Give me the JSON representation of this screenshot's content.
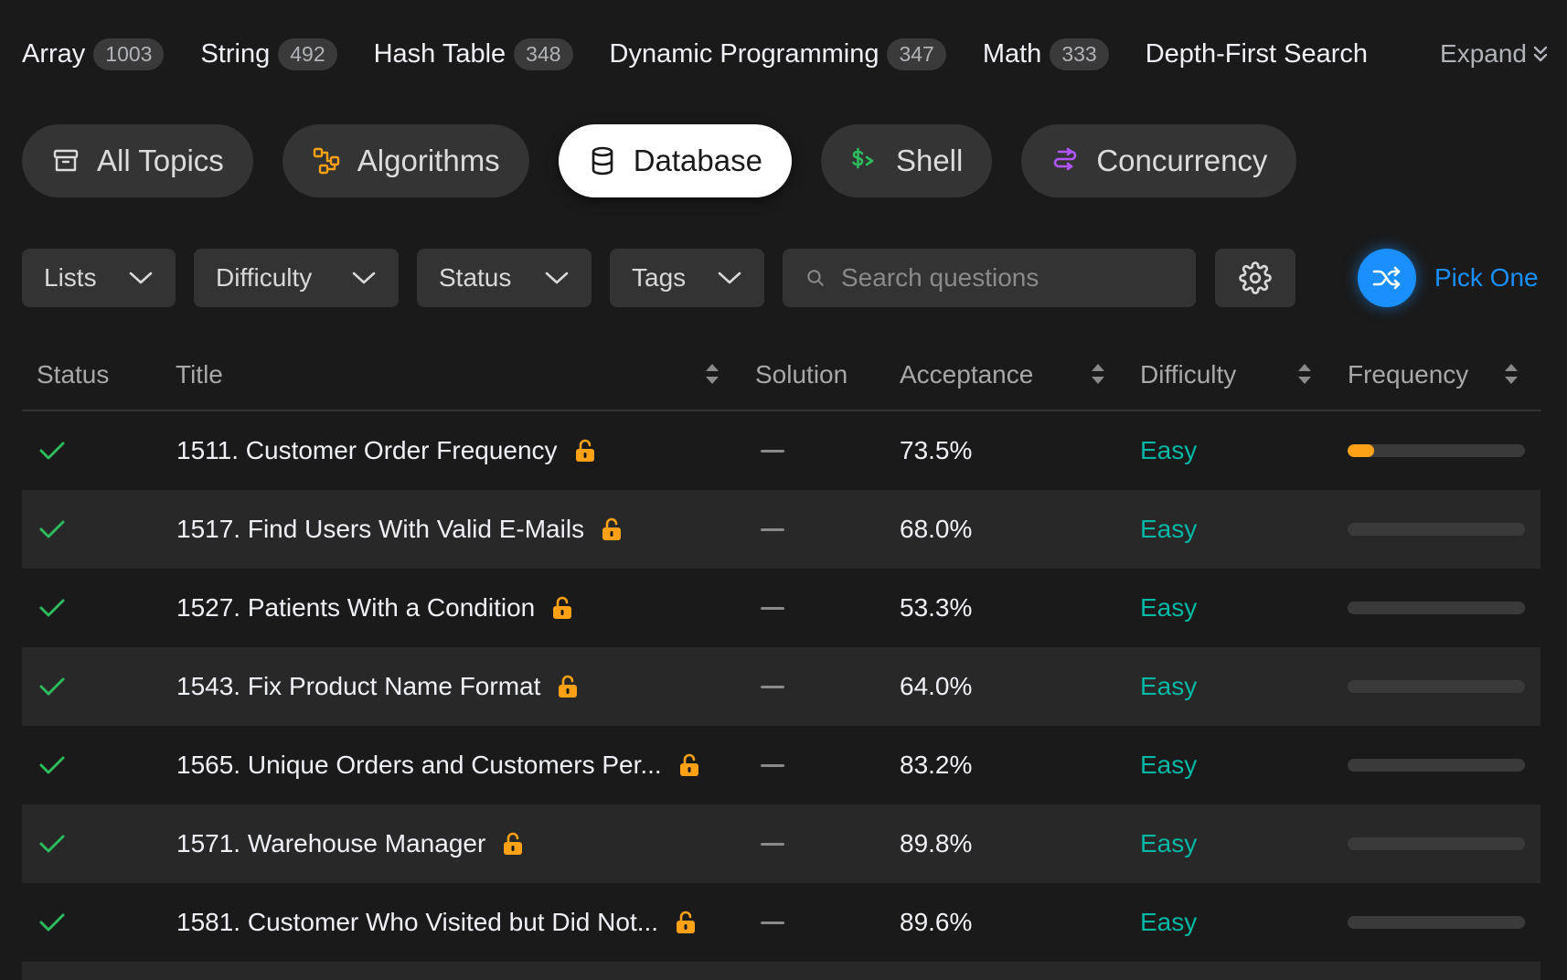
{
  "tags": [
    {
      "name": "Array",
      "count": "1003"
    },
    {
      "name": "String",
      "count": "492"
    },
    {
      "name": "Hash Table",
      "count": "348"
    },
    {
      "name": "Dynamic Programming",
      "count": "347"
    },
    {
      "name": "Math",
      "count": "333"
    },
    {
      "name": "Depth-First Search",
      "count": ""
    }
  ],
  "expand_label": "Expand",
  "categories": [
    {
      "label": "All Topics",
      "icon": "archive-icon"
    },
    {
      "label": "Algorithms",
      "icon": "algorithms-icon",
      "color": "#ffa116"
    },
    {
      "label": "Database",
      "icon": "database-icon",
      "active": true
    },
    {
      "label": "Shell",
      "icon": "shell-icon",
      "color": "#2cbb5d"
    },
    {
      "label": "Concurrency",
      "icon": "concurrency-icon",
      "color": "#b155ff"
    }
  ],
  "filters": {
    "lists": "Lists",
    "difficulty": "Difficulty",
    "status": "Status",
    "tags": "Tags",
    "search_placeholder": "Search questions",
    "pick_one": "Pick One"
  },
  "table": {
    "headers": {
      "status": "Status",
      "title": "Title",
      "solution": "Solution",
      "acceptance": "Acceptance",
      "difficulty": "Difficulty",
      "frequency": "Frequency"
    },
    "rows": [
      {
        "title": "1511. Customer Order Frequency",
        "acceptance": "73.5%",
        "difficulty": "Easy",
        "frequency": 0.15
      },
      {
        "title": "1517. Find Users With Valid E-Mails",
        "acceptance": "68.0%",
        "difficulty": "Easy",
        "frequency": 0
      },
      {
        "title": "1527. Patients With a Condition",
        "acceptance": "53.3%",
        "difficulty": "Easy",
        "frequency": 0
      },
      {
        "title": "1543. Fix Product Name Format",
        "acceptance": "64.0%",
        "difficulty": "Easy",
        "frequency": 0
      },
      {
        "title": "1565. Unique Orders and Customers Per...",
        "acceptance": "83.2%",
        "difficulty": "Easy",
        "frequency": 0
      },
      {
        "title": "1571. Warehouse Manager",
        "acceptance": "89.8%",
        "difficulty": "Easy",
        "frequency": 0
      },
      {
        "title": "1581. Customer Who Visited but Did Not...",
        "acceptance": "89.6%",
        "difficulty": "Easy",
        "frequency": 0
      }
    ]
  },
  "colors": {
    "easy": "#00b8a3",
    "accent": "#1a90ff",
    "brand": "#ffa116",
    "check": "#2cbb5d"
  }
}
